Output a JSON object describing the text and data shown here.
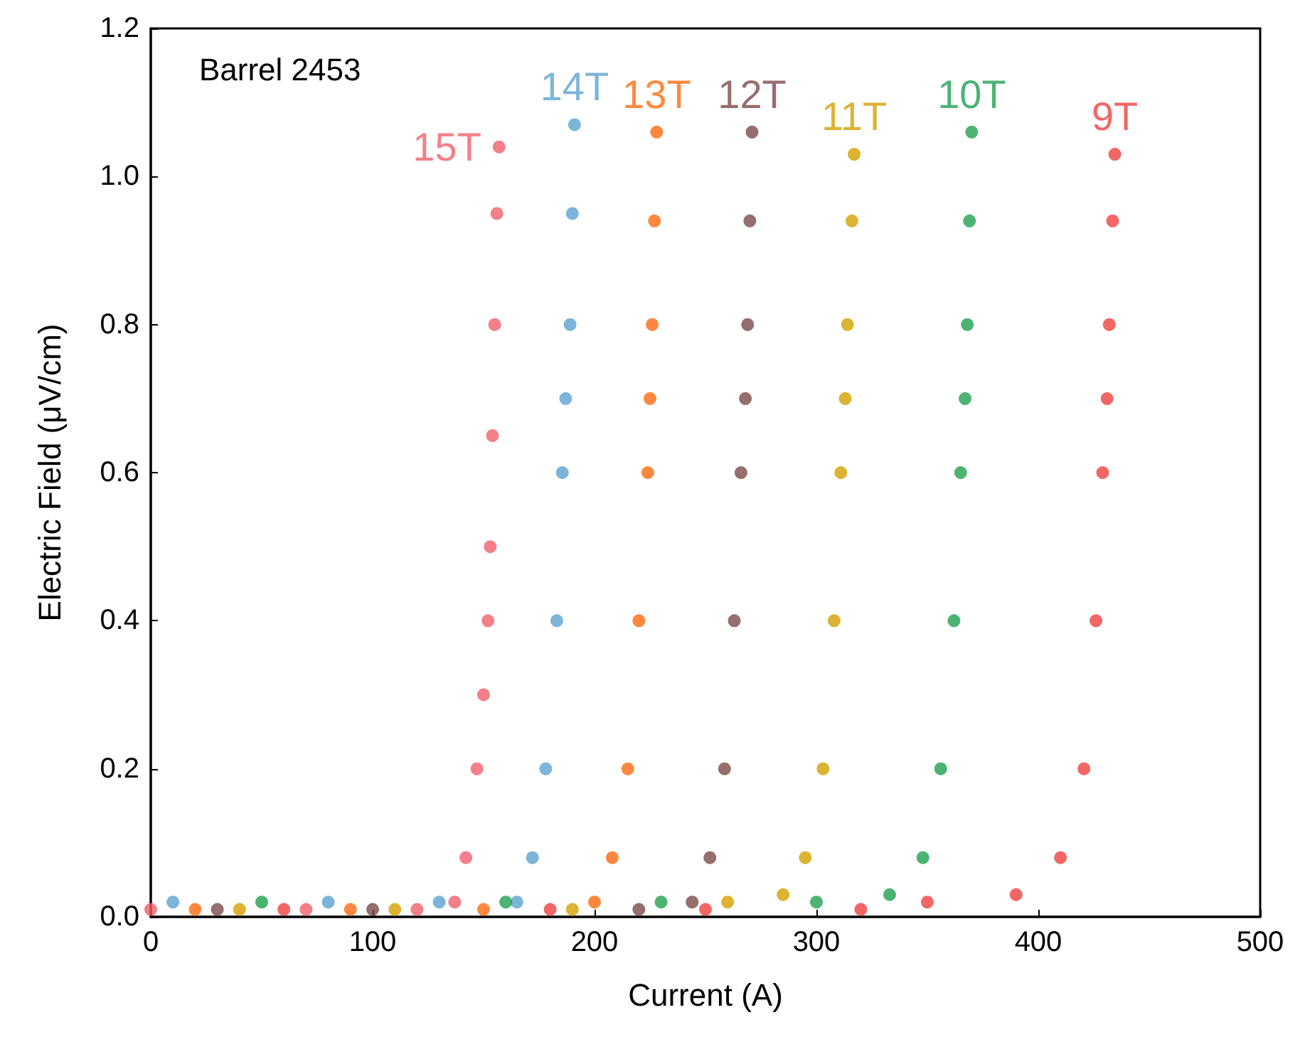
{
  "chart_data": {
    "type": "scatter",
    "xlabel": "Current (A)",
    "ylabel": "Electric Field (μV/cm)",
    "annotations": [
      "Barrel 2453"
    ],
    "xlim": [
      0,
      500
    ],
    "ylim": [
      0,
      1.2
    ],
    "xticks": [
      0,
      100,
      200,
      300,
      400,
      500
    ],
    "yticks": [
      {
        "value": 0,
        "label": "0.0"
      },
      {
        "value": 0.2,
        "label": "0.2"
      },
      {
        "value": 0.4,
        "label": "0.4"
      },
      {
        "value": 0.6,
        "label": "0.6"
      },
      {
        "value": 0.8,
        "label": "0.8"
      },
      {
        "value": 1,
        "label": "1.0"
      },
      {
        "value": 1.2,
        "label": "1.2"
      }
    ],
    "grid": false,
    "legend": false,
    "marker": "circle",
    "series": [
      {
        "name": "15T",
        "color": "#f0606a",
        "x": [
          0,
          70,
          120,
          137,
          142,
          147,
          150,
          152,
          153,
          154,
          155,
          156,
          157
        ],
        "values": [
          0.01,
          0.01,
          0.01,
          0.02,
          0.08,
          0.2,
          0.3,
          0.4,
          0.5,
          0.65,
          0.8,
          0.95,
          1.04
        ]
      },
      {
        "name": "14T",
        "color": "#5ba3d0",
        "x": [
          10,
          80,
          130,
          165,
          172,
          178,
          183,
          185.5,
          187,
          189,
          190,
          191
        ],
        "values": [
          0.02,
          0.02,
          0.02,
          0.02,
          0.08,
          0.2,
          0.4,
          0.6,
          0.7,
          0.8,
          0.95,
          1.07
        ]
      },
      {
        "name": "13T",
        "color": "#ff6a10",
        "x": [
          20,
          90,
          150,
          200,
          208,
          215,
          220,
          224,
          225,
          226,
          227,
          228
        ],
        "values": [
          0.01,
          0.01,
          0.01,
          0.02,
          0.08,
          0.2,
          0.4,
          0.6,
          0.7,
          0.8,
          0.94,
          1.06
        ]
      },
      {
        "name": "12T",
        "color": "#7a4a48",
        "x": [
          30,
          100,
          220,
          244,
          252,
          258.6,
          263,
          266,
          268,
          269,
          270,
          271
        ],
        "values": [
          0.01,
          0.01,
          0.01,
          0.02,
          0.08,
          0.2,
          0.4,
          0.6,
          0.7,
          0.8,
          0.94,
          1.06
        ]
      },
      {
        "name": "11T",
        "color": "#d4a000",
        "x": [
          40,
          110,
          190,
          260,
          285,
          295,
          303,
          308,
          311,
          313,
          314,
          316,
          317
        ],
        "values": [
          0.01,
          0.01,
          0.01,
          0.02,
          0.03,
          0.08,
          0.2,
          0.4,
          0.6,
          0.7,
          0.8,
          0.94,
          1.03
        ]
      },
      {
        "name": "10T",
        "color": "#20a050",
        "x": [
          50,
          160,
          230,
          300,
          333,
          348,
          356,
          362,
          365,
          367,
          368,
          369,
          370
        ],
        "values": [
          0.02,
          0.02,
          0.02,
          0.02,
          0.03,
          0.08,
          0.2,
          0.4,
          0.6,
          0.7,
          0.8,
          0.94,
          1.06
        ]
      },
      {
        "name": "9T",
        "color": "#f04040",
        "x": [
          60,
          180,
          250,
          320,
          350,
          390,
          410,
          420.6,
          426,
          429,
          431,
          432,
          433.5,
          434.5
        ],
        "values": [
          0.01,
          0.01,
          0.01,
          0.01,
          0.02,
          0.03,
          0.08,
          0.2,
          0.4,
          0.6,
          0.7,
          0.8,
          0.94,
          1.03
        ]
      }
    ]
  }
}
